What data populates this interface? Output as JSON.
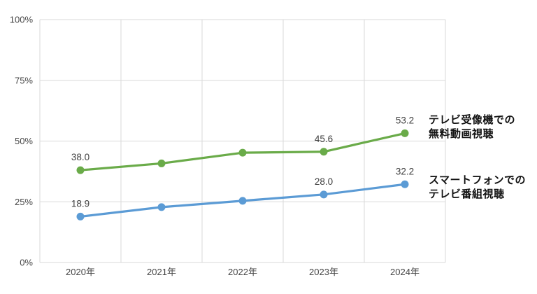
{
  "chart_data": {
    "type": "line",
    "categories": [
      "2020年",
      "2021年",
      "2022年",
      "2023年",
      "2024年"
    ],
    "ytick_labels": [
      "0%",
      "25%",
      "50%",
      "75%",
      "100%"
    ],
    "ytick_values": [
      0,
      25,
      50,
      75,
      100
    ],
    "ylim": [
      0,
      100
    ],
    "grid": true,
    "legend_position": "right",
    "title": "",
    "xlabel": "",
    "ylabel": "",
    "series": [
      {
        "name": "テレビ受像機での無料動画視聴",
        "legend_lines": [
          "テレビ受像機での",
          "無料動画視聴"
        ],
        "color": "#6aab49",
        "values": [
          38.0,
          40.8,
          45.2,
          45.6,
          53.2
        ],
        "point_labels": [
          "38.0",
          null,
          null,
          "45.6",
          "53.2"
        ]
      },
      {
        "name": "スマートフォンでのテレビ番組視聴",
        "legend_lines": [
          "スマートフォンでの",
          "テレビ番組視聴"
        ],
        "color": "#5b9bd5",
        "values": [
          18.9,
          22.8,
          25.4,
          28.0,
          32.2
        ],
        "point_labels": [
          "18.9",
          null,
          null,
          "28.0",
          "32.2"
        ]
      }
    ],
    "grid_color": "#d9d9d9",
    "axis_text_color": "#464646",
    "data_label_color": "#404040",
    "legend_text_color": "#111111",
    "background_color": "#ffffff"
  }
}
